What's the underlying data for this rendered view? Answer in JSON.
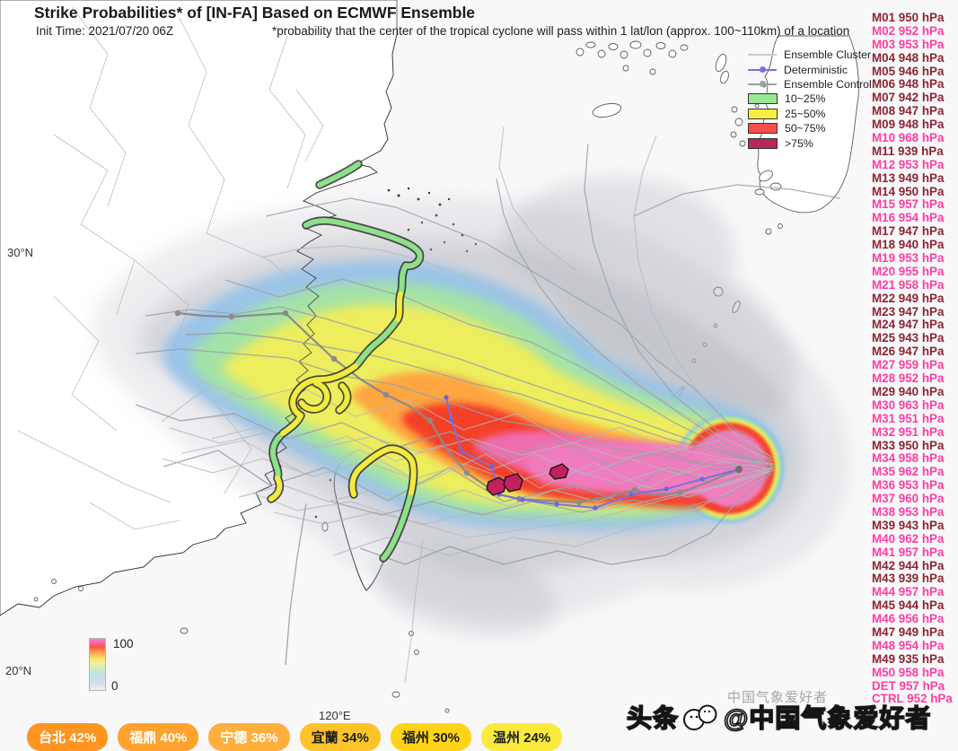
{
  "header": {
    "title": "Strike Probabilities* of [IN-FA] Based on ECMWF Ensemble",
    "init_time": "Init Time: 2021/07/20 06Z",
    "note": "*probability that the center of the tropical cyclone will pass within 1 lat/lon (approx. 100~110km) of a location"
  },
  "axes": {
    "lat_top": "30°N",
    "lat_bottom": "20°N",
    "lon": "120°E"
  },
  "colorbar": {
    "max": "100",
    "min": "0"
  },
  "legend": {
    "tracks": [
      {
        "label": "Ensemble Cluster",
        "color": "#cccccc",
        "marker": false
      },
      {
        "label": "Deterministic",
        "color": "#7b6fe0",
        "marker": true
      },
      {
        "label": "Ensemble Control",
        "color": "#9e9e9e",
        "marker": true
      }
    ],
    "bands": [
      {
        "label": "10~25%",
        "color": "#98e893"
      },
      {
        "label": "25~50%",
        "color": "#f8ee3f"
      },
      {
        "label": "50~75%",
        "color": "#f4504b"
      },
      {
        "label": ">75%",
        "color": "#b8265e"
      }
    ]
  },
  "watermark": {
    "brand": "头条",
    "handle": "@中国气象爱好者",
    "faint": "中国气象爱好者"
  },
  "member_colors": {
    "strong": "#8c2433",
    "weak": "#ff3da2",
    "strong_threshold_hPa": 950
  },
  "chart_data": {
    "type": "heatmap",
    "title": "Strike Probabilities* of [IN-FA] Based on ECMWF Ensemble",
    "subtitle": "Init Time: 2021/07/20 06Z",
    "footnote": "*probability that the center of the tropical cyclone will pass within 1 lat/lon (approx. 100~110km) of a location",
    "probability_scale": {
      "min": 0,
      "max": 100,
      "bands": [
        "10~25%",
        "25~50%",
        "50~75%",
        ">75%"
      ]
    },
    "track_legend": [
      "Ensemble Cluster",
      "Deterministic",
      "Ensemble Control"
    ],
    "geo_ticks": {
      "lat": [
        "30°N",
        "20°N"
      ],
      "lon": [
        "120°E"
      ]
    },
    "cities": [
      {
        "name": "台北",
        "strike_probability_pct": 42,
        "badge_color": "#ff9420",
        "label_color": "#ffffff"
      },
      {
        "name": "福鼎",
        "strike_probability_pct": 40,
        "badge_color": "#ffa22e",
        "label_color": "#ffffff"
      },
      {
        "name": "宁德",
        "strike_probability_pct": 36,
        "badge_color": "#ffb03c",
        "label_color": "#ffffff"
      },
      {
        "name": "宜蘭",
        "strike_probability_pct": 34,
        "badge_color": "#ffc32a",
        "label_color": "#1d1d1d"
      },
      {
        "name": "福州",
        "strike_probability_pct": 30,
        "badge_color": "#ffd418",
        "label_color": "#1d1d1d"
      },
      {
        "name": "温州",
        "strike_probability_pct": 24,
        "badge_color": "#f9ea3d",
        "label_color": "#1d1d1d"
      }
    ],
    "members": [
      {
        "id": "M01",
        "min_pressure_hPa": 950
      },
      {
        "id": "M02",
        "min_pressure_hPa": 952
      },
      {
        "id": "M03",
        "min_pressure_hPa": 953
      },
      {
        "id": "M04",
        "min_pressure_hPa": 948
      },
      {
        "id": "M05",
        "min_pressure_hPa": 946
      },
      {
        "id": "M06",
        "min_pressure_hPa": 948
      },
      {
        "id": "M07",
        "min_pressure_hPa": 942
      },
      {
        "id": "M08",
        "min_pressure_hPa": 947
      },
      {
        "id": "M09",
        "min_pressure_hPa": 948
      },
      {
        "id": "M10",
        "min_pressure_hPa": 968
      },
      {
        "id": "M11",
        "min_pressure_hPa": 939
      },
      {
        "id": "M12",
        "min_pressure_hPa": 953
      },
      {
        "id": "M13",
        "min_pressure_hPa": 949
      },
      {
        "id": "M14",
        "min_pressure_hPa": 950
      },
      {
        "id": "M15",
        "min_pressure_hPa": 957
      },
      {
        "id": "M16",
        "min_pressure_hPa": 954
      },
      {
        "id": "M17",
        "min_pressure_hPa": 947
      },
      {
        "id": "M18",
        "min_pressure_hPa": 940
      },
      {
        "id": "M19",
        "min_pressure_hPa": 953
      },
      {
        "id": "M20",
        "min_pressure_hPa": 955
      },
      {
        "id": "M21",
        "min_pressure_hPa": 958
      },
      {
        "id": "M22",
        "min_pressure_hPa": 949
      },
      {
        "id": "M23",
        "min_pressure_hPa": 947
      },
      {
        "id": "M24",
        "min_pressure_hPa": 947
      },
      {
        "id": "M25",
        "min_pressure_hPa": 943
      },
      {
        "id": "M26",
        "min_pressure_hPa": 947
      },
      {
        "id": "M27",
        "min_pressure_hPa": 959
      },
      {
        "id": "M28",
        "min_pressure_hPa": 952
      },
      {
        "id": "M29",
        "min_pressure_hPa": 940
      },
      {
        "id": "M30",
        "min_pressure_hPa": 963
      },
      {
        "id": "M31",
        "min_pressure_hPa": 951
      },
      {
        "id": "M32",
        "min_pressure_hPa": 951
      },
      {
        "id": "M33",
        "min_pressure_hPa": 950
      },
      {
        "id": "M34",
        "min_pressure_hPa": 958
      },
      {
        "id": "M35",
        "min_pressure_hPa": 962
      },
      {
        "id": "M36",
        "min_pressure_hPa": 953
      },
      {
        "id": "M37",
        "min_pressure_hPa": 960
      },
      {
        "id": "M38",
        "min_pressure_hPa": 953
      },
      {
        "id": "M39",
        "min_pressure_hPa": 943
      },
      {
        "id": "M40",
        "min_pressure_hPa": 962
      },
      {
        "id": "M41",
        "min_pressure_hPa": 957
      },
      {
        "id": "M42",
        "min_pressure_hPa": 944
      },
      {
        "id": "M43",
        "min_pressure_hPa": 939
      },
      {
        "id": "M44",
        "min_pressure_hPa": 957
      },
      {
        "id": "M45",
        "min_pressure_hPa": 944
      },
      {
        "id": "M46",
        "min_pressure_hPa": 956
      },
      {
        "id": "M47",
        "min_pressure_hPa": 949
      },
      {
        "id": "M48",
        "min_pressure_hPa": 954
      },
      {
        "id": "M49",
        "min_pressure_hPa": 935
      },
      {
        "id": "M50",
        "min_pressure_hPa": 958
      },
      {
        "id": "DET",
        "min_pressure_hPa": 957
      },
      {
        "id": "CTRL",
        "min_pressure_hPa": 952
      }
    ]
  }
}
